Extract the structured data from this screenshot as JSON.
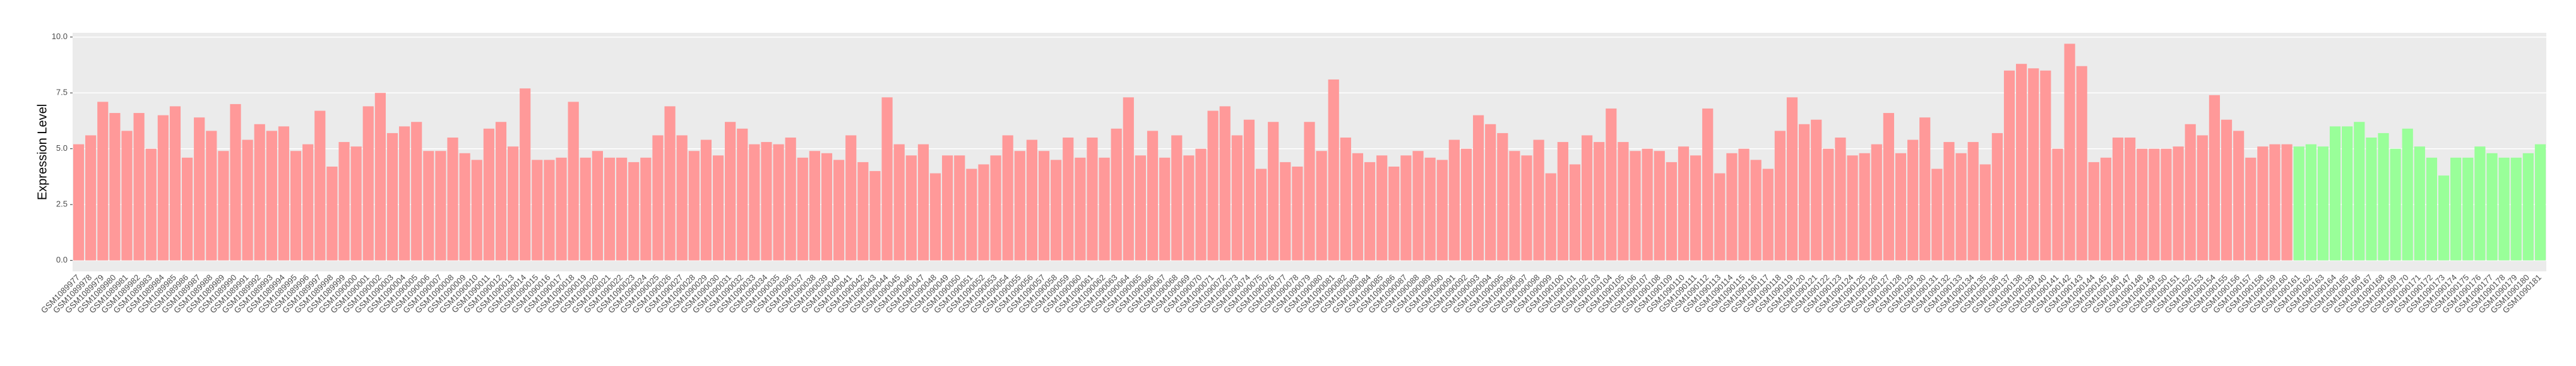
{
  "chart_data": {
    "type": "bar",
    "ylabel": "Expression Level",
    "categories": [
      "GSM1089977",
      "GSM1089978",
      "GSM1089979",
      "GSM1089980",
      "GSM1089981",
      "GSM1089982",
      "GSM1089983",
      "GSM1089984",
      "GSM1089985",
      "GSM1089986",
      "GSM1089987",
      "GSM1089988",
      "GSM1089989",
      "GSM1089990",
      "GSM1089991",
      "GSM1089992",
      "GSM1089993",
      "GSM1089994",
      "GSM1089995",
      "GSM1089996",
      "GSM1089997",
      "GSM1089998",
      "GSM1089999",
      "GSM1090000",
      "GSM1090001",
      "GSM1090002",
      "GSM1090003",
      "GSM1090004",
      "GSM1090005",
      "GSM1090006",
      "GSM1090007",
      "GSM1090008",
      "GSM1090009",
      "GSM1090010",
      "GSM1090011",
      "GSM1090012",
      "GSM1090013",
      "GSM1090014",
      "GSM1090015",
      "GSM1090016",
      "GSM1090017",
      "GSM1090018",
      "GSM1090019",
      "GSM1090020",
      "GSM1090021",
      "GSM1090022",
      "GSM1090023",
      "GSM1090024",
      "GSM1090025",
      "GSM1090026",
      "GSM1090027",
      "GSM1090028",
      "GSM1090029",
      "GSM1090030",
      "GSM1090031",
      "GSM1090032",
      "GSM1090033",
      "GSM1090034",
      "GSM1090035",
      "GSM1090036",
      "GSM1090037",
      "GSM1090038",
      "GSM1090039",
      "GSM1090040",
      "GSM1090041",
      "GSM1090042",
      "GSM1090043",
      "GSM1090044",
      "GSM1090045",
      "GSM1090046",
      "GSM1090047",
      "GSM1090048",
      "GSM1090049",
      "GSM1090050",
      "GSM1090051",
      "GSM1090052",
      "GSM1090053",
      "GSM1090054",
      "GSM1090055",
      "GSM1090056",
      "GSM1090057",
      "GSM1090058",
      "GSM1090059",
      "GSM1090060",
      "GSM1090061",
      "GSM1090062",
      "GSM1090063",
      "GSM1090064",
      "GSM1090065",
      "GSM1090066",
      "GSM1090067",
      "GSM1090068",
      "GSM1090069",
      "GSM1090070",
      "GSM1090071",
      "GSM1090072",
      "GSM1090073",
      "GSM1090074",
      "GSM1090075",
      "GSM1090076",
      "GSM1090077",
      "GSM1090078",
      "GSM1090079",
      "GSM1090080",
      "GSM1090081",
      "GSM1090082",
      "GSM1090083",
      "GSM1090084",
      "GSM1090085",
      "GSM1090086",
      "GSM1090087",
      "GSM1090088",
      "GSM1090089",
      "GSM1090090",
      "GSM1090091",
      "GSM1090092",
      "GSM1090093",
      "GSM1090094",
      "GSM1090095",
      "GSM1090096",
      "GSM1090097",
      "GSM1090098",
      "GSM1090099",
      "GSM1090100",
      "GSM1090101",
      "GSM1090102",
      "GSM1090103",
      "GSM1090104",
      "GSM1090105",
      "GSM1090106",
      "GSM1090107",
      "GSM1090108",
      "GSM1090109",
      "GSM1090110",
      "GSM1090111",
      "GSM1090112",
      "GSM1090113",
      "GSM1090114",
      "GSM1090115",
      "GSM1090116",
      "GSM1090117",
      "GSM1090118",
      "GSM1090119",
      "GSM1090120",
      "GSM1090121",
      "GSM1090122",
      "GSM1090123",
      "GSM1090124",
      "GSM1090125",
      "GSM1090126",
      "GSM1090127",
      "GSM1090128",
      "GSM1090129",
      "GSM1090130",
      "GSM1090131",
      "GSM1090132",
      "GSM1090133",
      "GSM1090134",
      "GSM1090135",
      "GSM1090136",
      "GSM1090137",
      "GSM1090138",
      "GSM1090139",
      "GSM1090140",
      "GSM1090141",
      "GSM1090142",
      "GSM1090143",
      "GSM1090144",
      "GSM1090145",
      "GSM1090146",
      "GSM1090147",
      "GSM1090148",
      "GSM1090149",
      "GSM1090150",
      "GSM1090151",
      "GSM1090152",
      "GSM1090153",
      "GSM1090154",
      "GSM1090155",
      "GSM1090156",
      "GSM1090157",
      "GSM1090158",
      "GSM1090159",
      "GSM1090160",
      "GSM1090161",
      "GSM1090162",
      "GSM1090163",
      "GSM1090164",
      "GSM1090165",
      "GSM1090166",
      "GSM1090167",
      "GSM1090168",
      "GSM1090169",
      "GSM1090170",
      "GSM1090171",
      "GSM1090172",
      "GSM1090173",
      "GSM1090174",
      "GSM1090175",
      "GSM1090176",
      "GSM1090177",
      "GSM1090178",
      "GSM1090179",
      "GSM1090180",
      "GSM1090181"
    ],
    "values": [
      5.2,
      5.6,
      7.1,
      6.6,
      5.8,
      6.6,
      5.0,
      6.5,
      6.9,
      4.6,
      6.4,
      5.8,
      4.9,
      7.0,
      5.4,
      6.1,
      5.8,
      6.0,
      4.9,
      5.2,
      6.7,
      4.2,
      5.3,
      5.1,
      6.9,
      7.5,
      5.7,
      6.0,
      6.2,
      4.9,
      4.9,
      5.5,
      4.8,
      4.5,
      5.9,
      6.2,
      5.1,
      7.7,
      4.5,
      4.5,
      4.6,
      7.1,
      4.6,
      4.9,
      4.6,
      4.6,
      4.4,
      4.6,
      5.6,
      6.9,
      5.6,
      4.9,
      5.4,
      4.7,
      6.2,
      5.9,
      5.2,
      5.3,
      5.2,
      5.5,
      4.6,
      4.9,
      4.8,
      4.5,
      5.6,
      4.4,
      4.0,
      7.3,
      5.2,
      4.7,
      5.2,
      3.9,
      4.7,
      4.7,
      4.1,
      4.3,
      4.7,
      5.6,
      4.9,
      5.4,
      4.9,
      4.5,
      5.5,
      4.6,
      5.5,
      4.6,
      5.9,
      7.3,
      4.7,
      5.8,
      4.6,
      5.6,
      4.7,
      5.0,
      6.7,
      6.9,
      5.6,
      6.3,
      4.1,
      6.2,
      4.4,
      4.2,
      6.2,
      4.9,
      8.1,
      5.5,
      4.8,
      4.4,
      4.7,
      4.2,
      4.7,
      4.9,
      4.6,
      4.5,
      5.4,
      5.0,
      6.5,
      6.1,
      5.7,
      4.9,
      4.7,
      5.4,
      3.9,
      5.3,
      4.3,
      5.6,
      5.3,
      6.8,
      5.3,
      4.9,
      5.0,
      4.9,
      4.4,
      5.1,
      4.7,
      6.8,
      3.9,
      4.8,
      5.0,
      4.5,
      4.1,
      5.8,
      7.3,
      6.1,
      6.3,
      5.0,
      5.5,
      4.7,
      4.8,
      5.2,
      6.6,
      4.8,
      5.4,
      6.4,
      4.1,
      5.3,
      4.8,
      5.3,
      4.3,
      5.7,
      8.5,
      8.8,
      8.6,
      8.5,
      5.0,
      9.7,
      8.7,
      4.4,
      4.6,
      5.5,
      5.5,
      5.0,
      5.0,
      5.0,
      5.1,
      6.1,
      5.6,
      7.4,
      6.3,
      5.8,
      4.6,
      5.1,
      5.2,
      5.2,
      5.1,
      5.2,
      5.1,
      6.0,
      6.0,
      6.2,
      5.5,
      5.7,
      5.0,
      5.9,
      5.1,
      4.6,
      3.8,
      4.6,
      4.6,
      5.1,
      4.8,
      4.6,
      4.6,
      4.8,
      5.2
    ],
    "colors": [
      "#ff9999",
      "#ff9999",
      "#ff9999",
      "#ff9999",
      "#ff9999",
      "#ff9999",
      "#ff9999",
      "#ff9999",
      "#ff9999",
      "#ff9999",
      "#ff9999",
      "#ff9999",
      "#ff9999",
      "#ff9999",
      "#ff9999",
      "#ff9999",
      "#ff9999",
      "#ff9999",
      "#ff9999",
      "#ff9999",
      "#ff9999",
      "#ff9999",
      "#ff9999",
      "#ff9999",
      "#ff9999",
      "#ff9999",
      "#ff9999",
      "#ff9999",
      "#ff9999",
      "#ff9999",
      "#ff9999",
      "#ff9999",
      "#ff9999",
      "#ff9999",
      "#ff9999",
      "#ff9999",
      "#ff9999",
      "#ff9999",
      "#ff9999",
      "#ff9999",
      "#ff9999",
      "#ff9999",
      "#ff9999",
      "#ff9999",
      "#ff9999",
      "#ff9999",
      "#ff9999",
      "#ff9999",
      "#ff9999",
      "#ff9999",
      "#ff9999",
      "#ff9999",
      "#ff9999",
      "#ff9999",
      "#ff9999",
      "#ff9999",
      "#ff9999",
      "#ff9999",
      "#ff9999",
      "#ff9999",
      "#ff9999",
      "#ff9999",
      "#ff9999",
      "#ff9999",
      "#ff9999",
      "#ff9999",
      "#ff9999",
      "#ff9999",
      "#ff9999",
      "#ff9999",
      "#ff9999",
      "#ff9999",
      "#ff9999",
      "#ff9999",
      "#ff9999",
      "#ff9999",
      "#ff9999",
      "#ff9999",
      "#ff9999",
      "#ff9999",
      "#ff9999",
      "#ff9999",
      "#ff9999",
      "#ff9999",
      "#ff9999",
      "#ff9999",
      "#ff9999",
      "#ff9999",
      "#ff9999",
      "#ff9999",
      "#ff9999",
      "#ff9999",
      "#ff9999",
      "#ff9999",
      "#ff9999",
      "#ff9999",
      "#ff9999",
      "#ff9999",
      "#ff9999",
      "#ff9999",
      "#ff9999",
      "#ff9999",
      "#ff9999",
      "#ff9999",
      "#ff9999",
      "#ff9999",
      "#ff9999",
      "#ff9999",
      "#ff9999",
      "#ff9999",
      "#ff9999",
      "#ff9999",
      "#ff9999",
      "#ff9999",
      "#ff9999",
      "#ff9999",
      "#ff9999",
      "#ff9999",
      "#ff9999",
      "#ff9999",
      "#ff9999",
      "#ff9999",
      "#ff9999",
      "#ff9999",
      "#ff9999",
      "#ff9999",
      "#ff9999",
      "#ff9999",
      "#ff9999",
      "#ff9999",
      "#ff9999",
      "#ff9999",
      "#ff9999",
      "#ff9999",
      "#ff9999",
      "#ff9999",
      "#ff9999",
      "#ff9999",
      "#ff9999",
      "#ff9999",
      "#ff9999",
      "#ff9999",
      "#ff9999",
      "#ff9999",
      "#ff9999",
      "#ff9999",
      "#ff9999",
      "#ff9999",
      "#ff9999",
      "#ff9999",
      "#ff9999",
      "#ff9999",
      "#ff9999",
      "#ff9999",
      "#ff9999",
      "#ff9999",
      "#ff9999",
      "#ff9999",
      "#ff9999",
      "#ff9999",
      "#ff9999",
      "#ff9999",
      "#ff9999",
      "#ff9999",
      "#ff9999",
      "#ff9999",
      "#ff9999",
      "#ff9999",
      "#ff9999",
      "#ff9999",
      "#ff9999",
      "#ff9999",
      "#ff9999",
      "#ff9999",
      "#ff9999",
      "#ff9999",
      "#ff9999",
      "#ff9999",
      "#ff9999",
      "#ff9999",
      "#ff9999",
      "#ff9999",
      "#ff9999",
      "#ff9999",
      "#99ff99",
      "#99ff99",
      "#99ff99",
      "#99ff99",
      "#99ff99",
      "#99ff99",
      "#99ff99",
      "#99ff99",
      "#99ff99",
      "#99ff99",
      "#99ff99",
      "#99ff99",
      "#99ff99",
      "#99ff99",
      "#99ff99",
      "#99ff99",
      "#99ff99",
      "#99ff99",
      "#99ff99",
      "#99ff99",
      "#99ff99"
    ],
    "ylim": [
      -0.49,
      10.19
    ],
    "yticks": [
      {
        "value": 0,
        "label": "0.0"
      },
      {
        "value": 2.5,
        "label": "2.5"
      },
      {
        "value": 5,
        "label": "5.0"
      },
      {
        "value": 7.5,
        "label": "7.5"
      },
      {
        "value": 10,
        "label": "10.0"
      }
    ],
    "grid": true
  }
}
